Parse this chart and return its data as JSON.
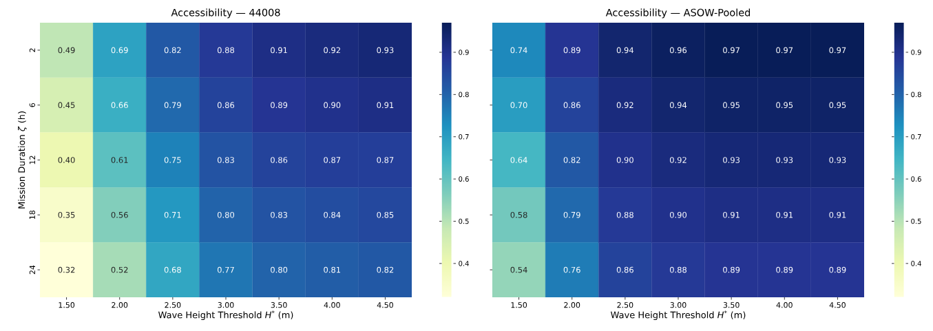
{
  "chart_data": [
    {
      "type": "heatmap",
      "title": "Accessibility — 44008",
      "xlabel": "Wave Height Threshold *H*$^{*}$ (m)",
      "ylabel": "Mission Duration *ζ* (h)",
      "categories": [
        "1.50",
        "2.00",
        "2.50",
        "3.00",
        "3.50",
        "4.00",
        "4.50"
      ],
      "y_categories": [
        "2",
        "6",
        "12",
        "18",
        "24"
      ],
      "cells": [
        [
          0.49,
          0.69,
          0.82,
          0.88,
          0.91,
          0.92,
          0.93
        ],
        [
          0.45,
          0.66,
          0.79,
          0.86,
          0.89,
          0.9,
          0.91
        ],
        [
          0.4,
          0.61,
          0.75,
          0.83,
          0.86,
          0.87,
          0.87
        ],
        [
          0.35,
          0.56,
          0.71,
          0.8,
          0.83,
          0.84,
          0.85
        ],
        [
          0.32,
          0.52,
          0.68,
          0.77,
          0.8,
          0.81,
          0.82
        ]
      ],
      "cell_labels": [
        [
          "0.49",
          "0.69",
          "0.82",
          "0.88",
          "0.91",
          "0.92",
          "0.93"
        ],
        [
          "0.45",
          "0.66",
          "0.79",
          "0.86",
          "0.89",
          "0.90",
          "0.91"
        ],
        [
          "0.40",
          "0.61",
          "0.75",
          "0.83",
          "0.86",
          "0.87",
          "0.87"
        ],
        [
          "0.35",
          "0.56",
          "0.71",
          "0.80",
          "0.83",
          "0.84",
          "0.85"
        ],
        [
          "0.32",
          "0.52",
          "0.68",
          "0.77",
          "0.80",
          "0.81",
          "0.82"
        ]
      ],
      "clim": [
        0.32,
        0.97
      ],
      "cticks": [
        0.4,
        0.5,
        0.6,
        0.7,
        0.8,
        0.9
      ]
    },
    {
      "type": "heatmap",
      "title": "Accessibility — ASOW-Pooled",
      "xlabel": "Wave Height Threshold *H*$^{*}$ (m)",
      "categories": [
        "1.50",
        "2.00",
        "2.50",
        "3.00",
        "3.50",
        "4.00",
        "4.50"
      ],
      "y_categories": [
        "2",
        "6",
        "12",
        "18",
        "24"
      ],
      "cells": [
        [
          0.74,
          0.89,
          0.94,
          0.96,
          0.97,
          0.97,
          0.97
        ],
        [
          0.7,
          0.86,
          0.92,
          0.94,
          0.95,
          0.95,
          0.95
        ],
        [
          0.64,
          0.82,
          0.9,
          0.92,
          0.93,
          0.93,
          0.93
        ],
        [
          0.58,
          0.79,
          0.88,
          0.9,
          0.91,
          0.91,
          0.91
        ],
        [
          0.54,
          0.76,
          0.86,
          0.88,
          0.89,
          0.89,
          0.89
        ]
      ],
      "cell_labels": [
        [
          "0.74",
          "0.89",
          "0.94",
          "0.96",
          "0.97",
          "0.97",
          "0.97"
        ],
        [
          "0.70",
          "0.86",
          "0.92",
          "0.94",
          "0.95",
          "0.95",
          "0.95"
        ],
        [
          "0.64",
          "0.82",
          "0.90",
          "0.92",
          "0.93",
          "0.93",
          "0.93"
        ],
        [
          "0.58",
          "0.79",
          "0.88",
          "0.90",
          "0.91",
          "0.91",
          "0.91"
        ],
        [
          "0.54",
          "0.76",
          "0.86",
          "0.88",
          "0.89",
          "0.89",
          "0.89"
        ]
      ],
      "clim": [
        0.32,
        0.97
      ],
      "cticks": [
        0.4,
        0.5,
        0.6,
        0.7,
        0.8,
        0.9
      ],
      "tick_labels": "x"
    }
  ]
}
